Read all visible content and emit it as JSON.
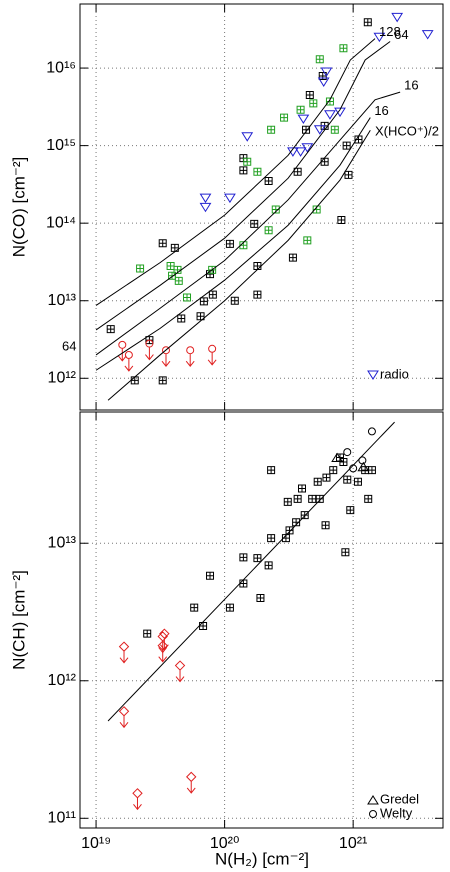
{
  "chart_data": [
    {
      "type": "scatter",
      "log_x": true,
      "log_y": true,
      "grid": true,
      "legend": "lower right",
      "ylabel": "N(CO) [cm⁻²]",
      "xlim": [
        7.5e+18,
        5e+21
      ],
      "ylim": [
        390000000000.0,
        6.7e+16
      ],
      "xticks": [
        1e+19,
        1e+20,
        1e+21
      ],
      "yticks": [
        {
          "value": 1000000000000.0,
          "label": "10¹²"
        },
        {
          "value": 10000000000000.0,
          "label": "10¹³"
        },
        {
          "value": 100000000000000.0,
          "label": "10¹⁴"
        },
        {
          "value": 1000000000000000.0,
          "label": "10¹⁵"
        },
        {
          "value": 1e+16,
          "label": "10¹⁶"
        }
      ],
      "annotations": [
        {
          "text": "64",
          "color": "#000000"
        },
        {
          "text": "X(HCO⁺)/2",
          "color": "#999999"
        }
      ],
      "series": [
        {
          "marker": "square",
          "color": "#000000",
          "x": [
            3.3e+19,
            4.1e+19,
            1.4e+20,
            1.4e+20,
            2.2e+20,
            6e+20,
            4.6e+20,
            5.8e+20,
            1.3e+21,
            8.9e+20,
            1.1e+21,
            9.2e+20,
            8.1e+20,
            3.4e+20,
            1.8e+20,
            1.7e+20,
            1.1e+20,
            8.1e+19,
            7.7e+19,
            1.2e+20,
            6.5e+19,
            4.6e+19,
            6.9e+19,
            1.8e+20,
            1.3e+19,
            2.6e+19,
            2e+19,
            3.3e+19,
            4.3e+20,
            6e+20,
            3.7e+20
          ],
          "y": [
            55000000000000.0,
            48000000000000.0,
            690000000000000.0,
            480000000000000.0,
            350000000000000.0,
            620000000000000.0,
            4500000000000000.0,
            7900000000000000.0,
            3.9e+16,
            1000000000000000.0,
            1200000000000000.0,
            420000000000000.0,
            110000000000000.0,
            36000000000000.0,
            28000000000000.0,
            98000000000000.0,
            54000000000000.0,
            12000000000000.0,
            22000000000000.0,
            10000000000000.0,
            6300000000000.0,
            5900000000000.0,
            9800000000000.0,
            12000000000000.0,
            4300000000000.0,
            3100000000000.0,
            940000000000.0,
            940000000000.0,
            1600000000000000.0,
            1800000000000000.0,
            460000000000000.0
          ]
        },
        {
          "marker": "square",
          "color": "#22a022",
          "x": [
            2.2e+19,
            3.8e+19,
            4.3e+19,
            3.9e+19,
            4.4e+19,
            5.1e+19,
            8e+19,
            1.4e+20,
            2.2e+20,
            2.5e+20,
            5.2e+20,
            4.4e+20,
            1.8e+20,
            1.5e+20,
            2.3e+20,
            2.9e+20,
            3.9e+20,
            4.9e+20,
            5.5e+20,
            8.4e+20,
            6.6e+20,
            7.2e+20
          ],
          "y": [
            26000000000000.0,
            28000000000000.0,
            25000000000000.0,
            21000000000000.0,
            18000000000000.0,
            11000000000000.0,
            25000000000000.0,
            52000000000000.0,
            81000000000000.0,
            150000000000000.0,
            150000000000000.0,
            60000000000000.0,
            460000000000000.0,
            620000000000000.0,
            1600000000000000.0,
            2300000000000000.0,
            2900000000000000.0,
            3500000000000000.0,
            1.3e+16,
            1.8e+16,
            3700000000000000.0,
            1600000000000000.0
          ]
        },
        {
          "name": "radio",
          "marker": "triangle-down",
          "color": "#2020d0",
          "x": [
            3.8e+21,
            2.2e+21,
            1.6e+21,
            6.2e+20,
            5.9e+20,
            1.5e+20,
            7.9e+20,
            6.6e+20,
            4.1e+20,
            3.4e+20,
            3.9e+20,
            4.4e+20,
            5.5e+20,
            7.1e+19,
            1.1e+20,
            7.1e+19
          ],
          "y": [
            2.7e+16,
            4.5e+16,
            2.5e+16,
            8900000000000000.0,
            6600000000000000.0,
            1300000000000000.0,
            2700000000000000.0,
            2500000000000000.0,
            2200000000000000.0,
            830000000000000.0,
            830000000000000.0,
            940000000000000.0,
            1600000000000000.0,
            210000000000000.0,
            210000000000000.0,
            160000000000000.0
          ]
        },
        {
          "marker": "circle",
          "color": "#e02020",
          "upper_limit": true,
          "x": [
            1.6e+19,
            1.8e+19,
            2.6e+19,
            3.5e+19,
            5.4e+19,
            8e+19
          ],
          "y": [
            2700000000000.0,
            2000000000000.0,
            2800000000000.0,
            2300000000000.0,
            2300000000000.0,
            2400000000000.0
          ]
        },
        {
          "name": "128",
          "marker": "line",
          "color": "#000000",
          "x": [
            1e+19,
            3.15e+19,
            1e+20,
            3.12e+20,
            6.6e+20,
            9.5e+20,
            1.48e+21
          ],
          "y": [
            8700000000000.0,
            31000000000000.0,
            127000000000000.0,
            750000000000000.0,
            3900000000000000.0,
            1.27e+16,
            2.4e+16
          ]
        },
        {
          "name": "64",
          "marker": "line",
          "color": "#000000",
          "x": [
            1e+19,
            3.15e+19,
            1e+20,
            3.12e+20,
            7.9e+20,
            1.24e+21,
            1.94e+21
          ],
          "y": [
            4200000000000.0,
            15800000000000.0,
            64000000000000.0,
            380000000000000.0,
            2900000000000000.0,
            1.27e+16,
            2.2e+16
          ]
        },
        {
          "name": "16",
          "marker": "line",
          "color": "#000000",
          "x": [
            1e+19,
            3.15e+19,
            1e+20,
            3.12e+20,
            7.9e+20,
            1.48e+21,
            2.32e+21
          ],
          "y": [
            2000000000000.0,
            8000000000000.0,
            33000000000000.0,
            200000000000000.0,
            1180000000000000.0,
            3900000000000000.0,
            4900000000000000.0
          ]
        },
        {
          "name": "16",
          "marker": "line",
          "color": "#000000",
          "label_color": "#999999",
          "x": [
            1e+19,
            3.15e+19,
            1e+20,
            3.12e+20,
            7.9e+20,
            1.36e+21
          ],
          "y": [
            1270000000000.0,
            4400000000000.0,
            18400000000000.0,
            94000000000000.0,
            560000000000000.0,
            2300000000000000.0
          ]
        },
        {
          "marker": "line",
          "color": "#000000",
          "x": [
            1.24e+19,
            3.15e+19,
            1e+20,
            3.12e+20,
            7.9e+20,
            1.36e+21
          ],
          "y": [
            520000000000.0,
            2000000000000.0,
            10000000000000.0,
            60000000000000.0,
            360000000000000.0,
            1580000000000000.0
          ]
        }
      ]
    },
    {
      "type": "scatter",
      "log_x": true,
      "log_y": true,
      "grid": true,
      "legend": "lower right",
      "ylabel": "N(CH) [cm⁻²]",
      "xlabel": "N(H₂) [cm⁻²]",
      "xlim": [
        7.5e+18,
        5e+21
      ],
      "ylim": [
        85000000000.0,
        90000000000000.0
      ],
      "xticks": [
        {
          "value": 1e+19,
          "label": "10¹⁹"
        },
        {
          "value": 1e+20,
          "label": "10²⁰"
        },
        {
          "value": 1e+21,
          "label": "10²¹"
        }
      ],
      "yticks": [
        {
          "value": 100000000000.0,
          "label": "10¹¹"
        },
        {
          "value": 1000000000000.0,
          "label": "10¹²"
        },
        {
          "value": 10000000000000.0,
          "label": "10¹³"
        }
      ],
      "series": [
        {
          "marker": "line",
          "color": "#000000",
          "x": [
            1.24e+19,
            2.1e+21
          ],
          "y": [
            510000000000.0,
            76000000000000.0
          ]
        },
        {
          "marker": "square",
          "color": "#000000",
          "x": [
            2.5e+19,
            5.8e+19,
            6.8e+19,
            7.7e+19,
            1.1e+20,
            1.4e+20,
            1.4e+20,
            1.8e+20,
            1.9e+20,
            2.2e+20,
            2.3e+20,
            3e+20,
            3.2e+20,
            3.6e+20,
            4.2e+20,
            4.8e+20,
            5.5e+20,
            6.1e+20,
            3.7e+20,
            3.1e+20,
            2.3e+20,
            4e+20,
            5.3e+20,
            6.2e+20,
            7e+20,
            7.9e+20,
            8.4e+20,
            9e+20,
            9.5e+20,
            8.7e+20,
            1.09e+21,
            1.24e+21,
            1.31e+21,
            1.4e+21
          ],
          "y": [
            2200000000000.0,
            3400000000000.0,
            2500000000000.0,
            5800000000000.0,
            3400000000000.0,
            5100000000000.0,
            7900000000000.0,
            7800000000000.0,
            4000000000000.0,
            6900000000000.0,
            10900000000000.0,
            10900000000000.0,
            12400000000000.0,
            14200000000000.0,
            16000000000000.0,
            21000000000000.0,
            21000000000000.0,
            13500000000000.0,
            21000000000000.0,
            20000000000000.0,
            34000000000000.0,
            25000000000000.0,
            28000000000000.0,
            30000000000000.0,
            34000000000000.0,
            42000000000000.0,
            39000000000000.0,
            29000000000000.0,
            17400000000000.0,
            8600000000000.0,
            28000000000000.0,
            34000000000000.0,
            21000000000000.0,
            34000000000000.0
          ]
        },
        {
          "marker": "diamond",
          "color": "#e02020",
          "upper_limit": true,
          "x": [
            1.65e+19,
            3.3e+19,
            3.3e+19,
            3.4e+19,
            4.5e+19,
            1.65e+19,
            2.1e+19,
            5.5e+19
          ],
          "y": [
            1770000000000.0,
            2100000000000.0,
            1800000000000.0,
            2200000000000.0,
            1290000000000.0,
            600000000000.0,
            152000000000.0,
            200000000000.0
          ]
        },
        {
          "name": "Gredel",
          "marker": "triangle-up",
          "color": "#000000",
          "x": [
            7.5e+20,
            1.2e+21
          ],
          "y": [
            42000000000000.0,
            36000000000000.0
          ]
        },
        {
          "name": "Welty",
          "marker": "circle",
          "color": "#000000",
          "x": [
            1.4e+21,
            1.18e+21,
            1e+21,
            9e+20
          ],
          "y": [
            65000000000000.0,
            40000000000000.0,
            35000000000000.0,
            46000000000000.0
          ]
        }
      ]
    }
  ]
}
